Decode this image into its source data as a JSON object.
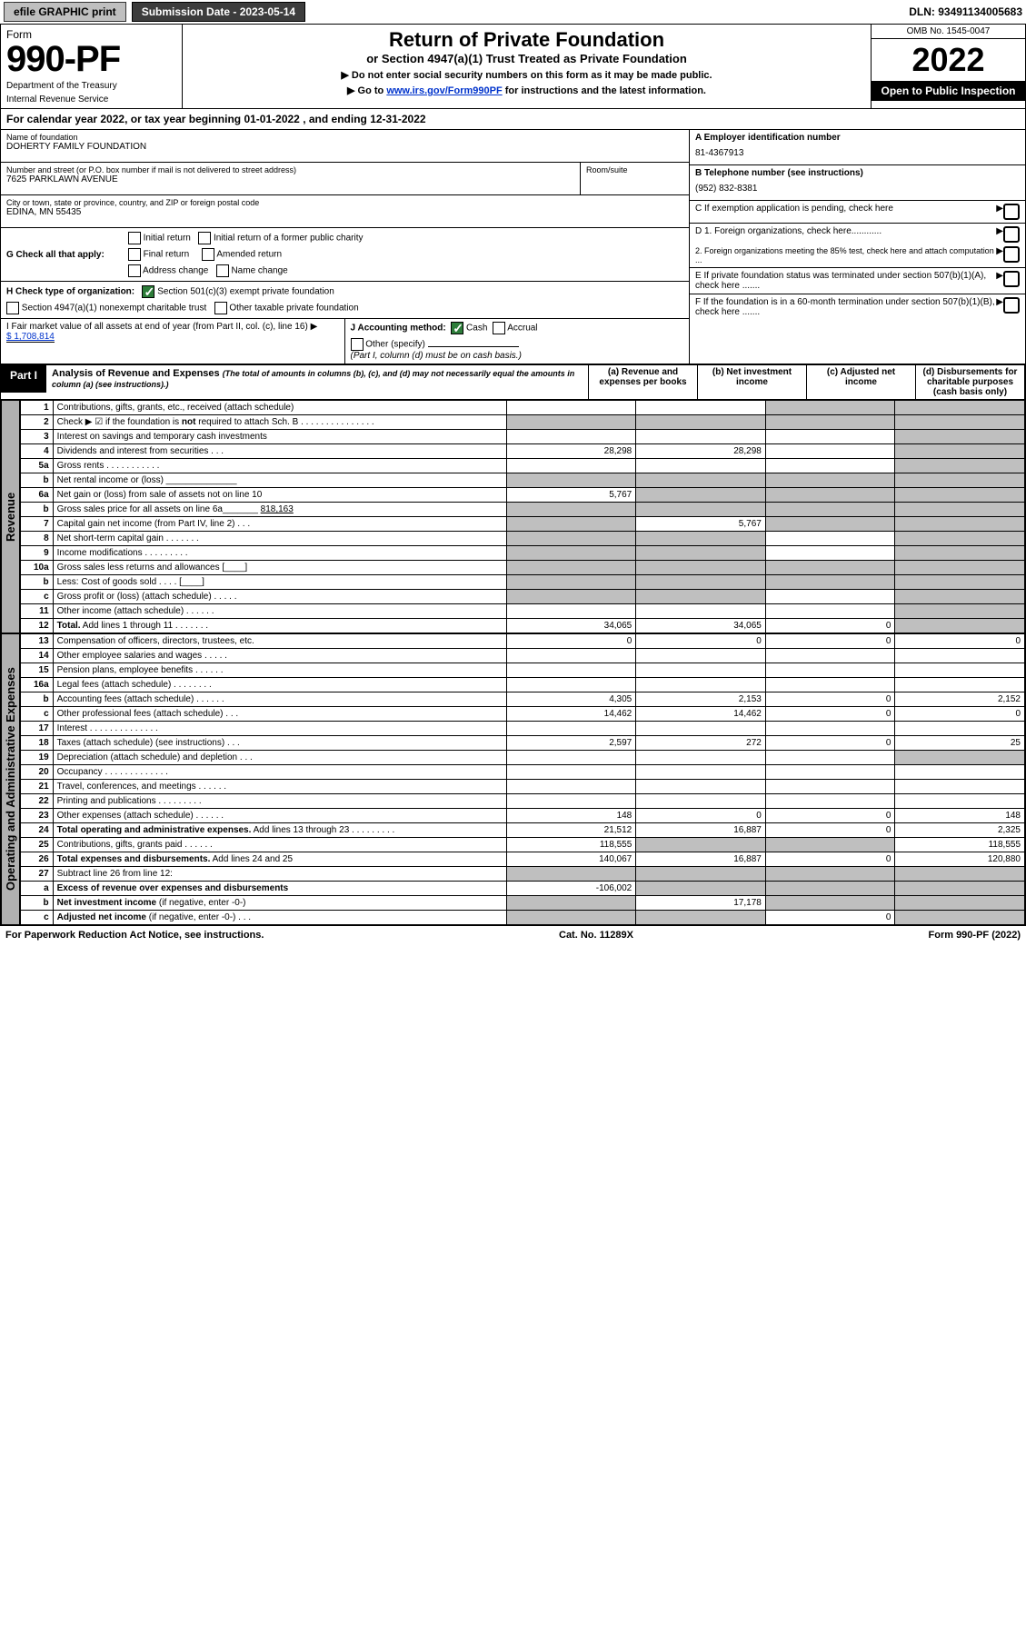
{
  "topbar": {
    "efile": "efile GRAPHIC print",
    "submission_label": "Submission Date - 2023-05-14",
    "dln_label": "DLN: 93491134005683"
  },
  "header": {
    "form_label": "Form",
    "form_number": "990-PF",
    "dept": "Department of the Treasury",
    "irs": "Internal Revenue Service",
    "title": "Return of Private Foundation",
    "subtitle": "or Section 4947(a)(1) Trust Treated as Private Foundation",
    "note1": "▶ Do not enter social security numbers on this form as it may be made public.",
    "note2_prefix": "▶ Go to ",
    "note2_link": "www.irs.gov/Form990PF",
    "note2_suffix": " for instructions and the latest information.",
    "omb": "OMB No. 1545-0047",
    "year": "2022",
    "open": "Open to Public Inspection"
  },
  "calendar": {
    "prefix": "For calendar year 2022, or tax year beginning ",
    "begin": "01-01-2022",
    "mid": " , and ending ",
    "end": "12-31-2022"
  },
  "name_block": {
    "name_label": "Name of foundation",
    "name": "DOHERTY FAMILY FOUNDATION",
    "addr_label": "Number and street (or P.O. box number if mail is not delivered to street address)",
    "addr": "7625 PARKLAWN AVENUE",
    "room_label": "Room/suite",
    "city_label": "City or town, state or province, country, and ZIP or foreign postal code",
    "city": "EDINA, MN  55435"
  },
  "right_block": {
    "a_label": "A Employer identification number",
    "a_val": "81-4367913",
    "b_label": "B Telephone number (see instructions)",
    "b_val": "(952) 832-8381",
    "c_label": "C If exemption application is pending, check here",
    "d1": "D 1. Foreign organizations, check here............",
    "d2": "2. Foreign organizations meeting the 85% test, check here and attach computation ...",
    "e": "E  If private foundation status was terminated under section 507(b)(1)(A), check here .......",
    "f": "F  If the foundation is in a 60-month termination under section 507(b)(1)(B), check here .......",
    "arrow": "▶"
  },
  "g": {
    "label": "G Check all that apply:",
    "opts": [
      "Initial return",
      "Initial return of a former public charity",
      "Final return",
      "Amended return",
      "Address change",
      "Name change"
    ]
  },
  "h": {
    "label": "H Check type of organization:",
    "opt1": "Section 501(c)(3) exempt private foundation",
    "opt2": "Section 4947(a)(1) nonexempt charitable trust",
    "opt3": "Other taxable private foundation"
  },
  "i": {
    "label": "I Fair market value of all assets at end of year (from Part II, col. (c), line 16) ▶",
    "val": "$  1,708,814"
  },
  "j": {
    "label": "J Accounting method:",
    "cash": "Cash",
    "accrual": "Accrual",
    "other": "Other (specify)",
    "note": "(Part I, column (d) must be on cash basis.)"
  },
  "part1": {
    "tag": "Part I",
    "title": "Analysis of Revenue and Expenses",
    "title_note": "(The total of amounts in columns (b), (c), and (d) may not necessarily equal the amounts in column (a) (see instructions).)",
    "col_a": "(a)   Revenue and expenses per books",
    "col_b": "(b)   Net investment income",
    "col_c": "(c)   Adjusted net income",
    "col_d": "(d)  Disbursements for charitable purposes (cash basis only)"
  },
  "side_labels": {
    "revenue": "Revenue",
    "opex": "Operating and Administrative Expenses"
  },
  "rows": [
    {
      "n": "1",
      "label": "Contributions, gifts, grants, etc., received (attach schedule)",
      "a": "",
      "b": "",
      "c": "shade",
      "d": "shade"
    },
    {
      "n": "2",
      "label": "Check ▶ ☑ if the foundation is <b>not</b> required to attach Sch. B   .   .   .   .   .   .   .   .   .   .   .   .   .   .   .",
      "a": "shade",
      "b": "shade",
      "c": "shade",
      "d": "shade"
    },
    {
      "n": "3",
      "label": "Interest on savings and temporary cash investments",
      "a": "",
      "b": "",
      "c": "",
      "d": "shade"
    },
    {
      "n": "4",
      "label": "Dividends and interest from securities   .   .   .",
      "a": "28,298",
      "b": "28,298",
      "c": "",
      "d": "shade"
    },
    {
      "n": "5a",
      "label": "Gross rents   .   .   .   .   .   .   .   .   .   .   .",
      "a": "",
      "b": "",
      "c": "",
      "d": "shade"
    },
    {
      "n": "b",
      "label": "Net rental income or (loss)   ______________",
      "a": "shade",
      "b": "shade",
      "c": "shade",
      "d": "shade"
    },
    {
      "n": "6a",
      "label": "Net gain or (loss) from sale of assets not on line 10",
      "a": "5,767",
      "b": "shade",
      "c": "shade",
      "d": "shade"
    },
    {
      "n": "b",
      "label": "Gross sales price for all assets on line 6a_______ <u>818,163</u>",
      "a": "shade",
      "b": "shade",
      "c": "shade",
      "d": "shade"
    },
    {
      "n": "7",
      "label": "Capital gain net income (from Part IV, line 2)   .   .   .",
      "a": "shade",
      "b": "5,767",
      "c": "shade",
      "d": "shade"
    },
    {
      "n": "8",
      "label": "Net short-term capital gain   .   .   .   .   .   .   .",
      "a": "shade",
      "b": "shade",
      "c": "",
      "d": "shade"
    },
    {
      "n": "9",
      "label": "Income modifications  .   .   .   .   .   .   .   .   .",
      "a": "shade",
      "b": "shade",
      "c": "",
      "d": "shade"
    },
    {
      "n": "10a",
      "label": "Gross sales less returns and allowances  [____]",
      "a": "shade",
      "b": "shade",
      "c": "shade",
      "d": "shade"
    },
    {
      "n": "b",
      "label": "Less: Cost of goods sold   .   .   .   .   [____]",
      "a": "shade",
      "b": "shade",
      "c": "shade",
      "d": "shade"
    },
    {
      "n": "c",
      "label": "Gross profit or (loss) (attach schedule)   .   .   .   .   .",
      "a": "shade",
      "b": "shade",
      "c": "",
      "d": "shade"
    },
    {
      "n": "11",
      "label": "Other income (attach schedule)   .   .   .   .   .   .",
      "a": "",
      "b": "",
      "c": "",
      "d": "shade"
    },
    {
      "n": "12",
      "label": "<b>Total.</b> Add lines 1 through 11   .   .   .   .   .   .   .",
      "a": "34,065",
      "b": "34,065",
      "c": "0",
      "d": "shade"
    }
  ],
  "oprows": [
    {
      "n": "13",
      "label": "Compensation of officers, directors, trustees, etc.",
      "a": "0",
      "b": "0",
      "c": "0",
      "d": "0"
    },
    {
      "n": "14",
      "label": "Other employee salaries and wages   .   .   .   .   .",
      "a": "",
      "b": "",
      "c": "",
      "d": ""
    },
    {
      "n": "15",
      "label": "Pension plans, employee benefits   .   .   .   .   .   .",
      "a": "",
      "b": "",
      "c": "",
      "d": ""
    },
    {
      "n": "16a",
      "label": "Legal fees (attach schedule)  .   .   .   .   .   .   .   .",
      "a": "",
      "b": "",
      "c": "",
      "d": ""
    },
    {
      "n": "b",
      "label": "Accounting fees (attach schedule)  .   .   .   .   .   .",
      "a": "4,305",
      "b": "2,153",
      "c": "0",
      "d": "2,152"
    },
    {
      "n": "c",
      "label": "Other professional fees (attach schedule)   .   .   .",
      "a": "14,462",
      "b": "14,462",
      "c": "0",
      "d": "0"
    },
    {
      "n": "17",
      "label": "Interest  .   .   .   .   .   .   .   .   .   .   .   .   .   .",
      "a": "",
      "b": "",
      "c": "",
      "d": ""
    },
    {
      "n": "18",
      "label": "Taxes (attach schedule) (see instructions)   .   .   .",
      "a": "2,597",
      "b": "272",
      "c": "0",
      "d": "25"
    },
    {
      "n": "19",
      "label": "Depreciation (attach schedule) and depletion   .   .   .",
      "a": "",
      "b": "",
      "c": "",
      "d": "shade"
    },
    {
      "n": "20",
      "label": "Occupancy  .   .   .   .   .   .   .   .   .   .   .   .   .",
      "a": "",
      "b": "",
      "c": "",
      "d": ""
    },
    {
      "n": "21",
      "label": "Travel, conferences, and meetings  .   .   .   .   .   .",
      "a": "",
      "b": "",
      "c": "",
      "d": ""
    },
    {
      "n": "22",
      "label": "Printing and publications  .   .   .   .   .   .   .   .   .",
      "a": "",
      "b": "",
      "c": "",
      "d": ""
    },
    {
      "n": "23",
      "label": "Other expenses (attach schedule)  .   .   .   .   .   .",
      "a": "148",
      "b": "0",
      "c": "0",
      "d": "148"
    },
    {
      "n": "24",
      "label": "<b>Total operating and administrative expenses.</b> Add lines 13 through 23   .   .   .   .   .   .   .   .   .",
      "a": "21,512",
      "b": "16,887",
      "c": "0",
      "d": "2,325"
    },
    {
      "n": "25",
      "label": "Contributions, gifts, grants paid   .   .   .   .   .   .",
      "a": "118,555",
      "b": "shade",
      "c": "shade",
      "d": "118,555"
    },
    {
      "n": "26",
      "label": "<b>Total expenses and disbursements.</b> Add lines 24 and 25",
      "a": "140,067",
      "b": "16,887",
      "c": "0",
      "d": "120,880"
    },
    {
      "n": "27",
      "label": "Subtract line 26 from line 12:",
      "a": "shade",
      "b": "shade",
      "c": "shade",
      "d": "shade"
    },
    {
      "n": "a",
      "label": "<b>Excess of revenue over expenses and disbursements</b>",
      "a": "-106,002",
      "b": "shade",
      "c": "shade",
      "d": "shade"
    },
    {
      "n": "b",
      "label": "<b>Net investment income</b> (if negative, enter -0-)",
      "a": "shade",
      "b": "17,178",
      "c": "shade",
      "d": "shade"
    },
    {
      "n": "c",
      "label": "<b>Adjusted net income</b> (if negative, enter -0-)   .   .   .",
      "a": "shade",
      "b": "shade",
      "c": "0",
      "d": "shade"
    }
  ],
  "footer": {
    "left": "For Paperwork Reduction Act Notice, see instructions.",
    "mid": "Cat. No. 11289X",
    "right": "Form 990-PF (2022)"
  },
  "colors": {
    "shade": "#bfbfbf",
    "black": "#000000",
    "link": "#0033cc",
    "check_green": "#2d7d3a"
  }
}
